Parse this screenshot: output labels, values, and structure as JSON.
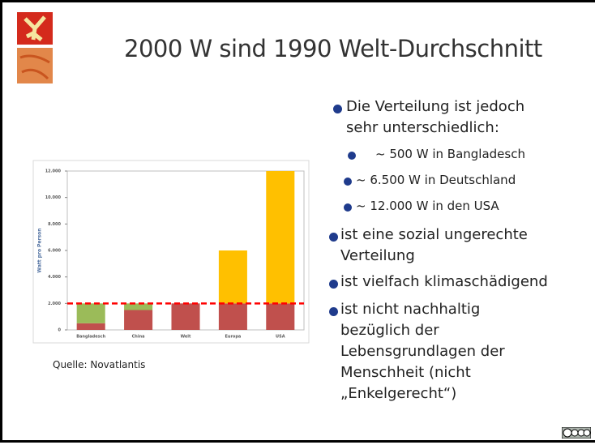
{
  "title": "2000 W sind 1990 Welt-Durchschnitt",
  "source": "Quelle: Novatlantis",
  "bullets": [
    {
      "lines": [
        "Die Verteilung ist jedoch",
        "sehr unterschiedlich:"
      ],
      "sub": [
        "~ 500 W in Bangladesch",
        "~  6.500 W in Deutschland",
        "~ 12.000 W in den USA"
      ]
    },
    {
      "lines": [
        "ist eine sozial ungerechte",
        "Verteilung"
      ]
    },
    {
      "lines": [
        "ist vielfach klimaschädigend"
      ]
    },
    {
      "lines": [
        "ist nicht nachhaltig",
        "bezüglich der",
        "Lebensgrundlagen der",
        "Menschheit (nicht",
        "„Enkelgerecht“)"
      ]
    }
  ],
  "chart_data": {
    "type": "stacked-bar",
    "categories": [
      "Bangladesch",
      "China",
      "Welt",
      "Europa",
      "USA"
    ],
    "ylabel": "Watt pro Person",
    "series": [
      {
        "color": "#c0504d",
        "values": [
          500,
          1500,
          2000,
          2000,
          2000
        ]
      },
      {
        "color": "#9bbb59",
        "values": [
          1500,
          500,
          null,
          null,
          null
        ]
      },
      {
        "color": "#ffc000",
        "values": [
          null,
          null,
          null,
          4000,
          10000
        ]
      }
    ],
    "reference_line": {
      "value": 2000,
      "color": "#ff0000"
    },
    "ylim": [
      0,
      12000
    ],
    "yticks": [
      0,
      {
        "value": 2000,
        "label": "2.000"
      },
      {
        "value": 4000,
        "label": "4.000"
      },
      {
        "value": 6000,
        "label": "6.000"
      },
      {
        "value": 8000,
        "label": "8.000"
      },
      {
        "value": 10000,
        "label": "10.000"
      },
      {
        "value": 12000,
        "label": "12.000"
      }
    ]
  }
}
